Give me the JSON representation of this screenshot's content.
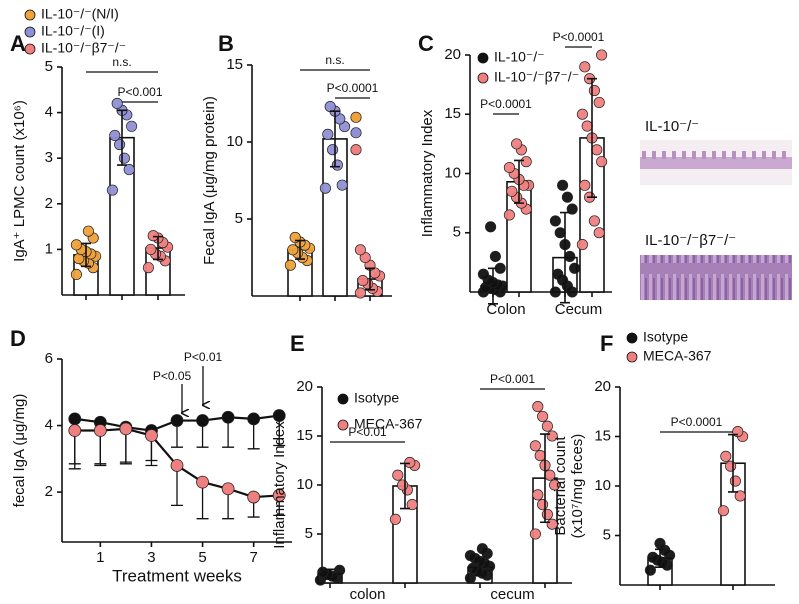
{
  "chart_data": [
    {
      "type": "bar",
      "panel_label": "A",
      "ylabel": "IgA⁺ LPMC count (x10⁶)",
      "ylim": [
        0,
        5
      ],
      "yticks": [
        1,
        2,
        3,
        4,
        5
      ],
      "series": [
        {
          "name": "IL-10⁻/⁻(N/I)",
          "color": "#f0a13a",
          "values": [
            0.88
          ],
          "errors": [
            0.25
          ],
          "points": [
            [
              0.45,
              0.6,
              0.7,
              0.75,
              0.8,
              0.85,
              0.9,
              0.95,
              1.0,
              1.1,
              1.25,
              1.4
            ]
          ]
        },
        {
          "name": "IL-10⁻/⁻(I)",
          "color": "#8f8fd6",
          "values": [
            3.45
          ],
          "errors": [
            0.6
          ],
          "points": [
            [
              2.3,
              2.75,
              3.0,
              3.3,
              3.5,
              3.7,
              3.95,
              4.05,
              4.2
            ]
          ]
        },
        {
          "name": "IL-10⁻/⁻β7⁻/⁻",
          "color": "#f08080",
          "values": [
            1.03
          ],
          "errors": [
            0.25
          ],
          "points": [
            [
              0.6,
              0.75,
              0.85,
              0.9,
              1.0,
              1.05,
              1.15,
              1.25,
              1.3
            ]
          ]
        }
      ],
      "annotations": [
        "n.s.",
        "P<0.001"
      ]
    },
    {
      "type": "bar",
      "panel_label": "B",
      "ylabel": "Fecal IgA (μg/mg protein)",
      "ylim": [
        0,
        15
      ],
      "yticks": [
        5,
        10,
        15
      ],
      "series": [
        {
          "color": "#f0a13a",
          "values": [
            3.0
          ],
          "errors": [
            0.6
          ],
          "points": [
            [
              2.0,
              2.3,
              2.5,
              2.8,
              3.0,
              3.1,
              3.3,
              3.5,
              3.8
            ]
          ]
        },
        {
          "color": "#8f8fd6",
          "values": [
            10.2
          ],
          "errors": [
            1.8
          ],
          "points": [
            [
              7.0,
              7.2,
              8.5,
              9.5,
              10.5,
              11.0,
              11.5,
              12.0,
              12.3
            ]
          ]
        },
        {
          "color": "#f08080",
          "values": [
            1.1
          ],
          "errors": [
            0.7
          ],
          "points": [
            [
              0.2,
              0.3,
              0.5,
              0.8,
              1.0,
              1.3,
              1.5,
              2.0,
              2.5,
              3.0
            ]
          ]
        }
      ],
      "extra_points": [
        {
          "color": "#f0a13a",
          "value": 11.6
        },
        {
          "color": "#8f8fd6",
          "value": 10.6
        },
        {
          "color": "#f08080",
          "value": 9.5
        }
      ],
      "annotations": [
        "n.s.",
        "P<0.0001"
      ]
    },
    {
      "type": "bar",
      "panel_label": "C",
      "ylabel": "Inflammatory Index",
      "ylim": [
        0,
        20
      ],
      "yticks": [
        5,
        10,
        15,
        20
      ],
      "categories": [
        "Colon",
        "Cecum"
      ],
      "series": [
        {
          "name": "IL-10⁻/⁻",
          "color": "#111111",
          "values": [
            0.5,
            2.9
          ],
          "errors": [
            1.5,
            3.8
          ],
          "points": [
            [
              0,
              0,
              0.2,
              0.3,
              0.4,
              0.5,
              0.6,
              0.8,
              1.0,
              1.5,
              2.0,
              3.0,
              5.5
            ],
            [
              0,
              0,
              0.5,
              1.0,
              1.5,
              2.0,
              3.0,
              4.0,
              5.0,
              6.0,
              7.0,
              8.0,
              9.0
            ]
          ]
        },
        {
          "name": "IL-10⁻/⁻β7⁻/⁻",
          "color": "#f08080",
          "values": [
            9.3,
            13.0
          ],
          "errors": [
            1.8,
            5.0
          ],
          "points": [
            [
              6.5,
              7.0,
              7.5,
              8.0,
              8.5,
              9.0,
              9.0,
              9.5,
              10.0,
              10.5,
              11.0,
              12.0,
              12.5
            ],
            [
              4,
              5,
              6,
              8,
              9,
              11,
              12,
              13,
              14,
              15,
              16,
              17,
              18,
              19,
              20
            ]
          ]
        }
      ],
      "annotations": [
        "P<0.0001",
        "P<0.0001"
      ]
    },
    {
      "type": "line",
      "panel_label": "D",
      "ylabel": "fecal IgA (μg/mg)",
      "xlabel": "Treatment weeks",
      "x": [
        0,
        1,
        2,
        3,
        4,
        5,
        6,
        7,
        8
      ],
      "xlim": [
        -0.5,
        8.5
      ],
      "xticks": [
        1,
        3,
        5,
        7
      ],
      "ylim": [
        0.5,
        6
      ],
      "yticks": [
        2,
        4,
        6
      ],
      "series": [
        {
          "color": "#111111",
          "values": [
            4.2,
            4.1,
            3.95,
            3.85,
            4.15,
            4.15,
            4.25,
            4.2,
            4.3
          ],
          "errors": [
            1.5,
            1.3,
            1.1,
            0.9,
            0.8,
            0.8,
            0.9,
            0.9,
            0.9
          ]
        },
        {
          "color": "#f08080",
          "values": [
            3.85,
            3.85,
            3.9,
            3.7,
            2.8,
            2.3,
            2.1,
            1.85,
            1.9
          ],
          "errors": [
            1.0,
            1.0,
            1.0,
            0.9,
            1.2,
            1.1,
            0.9,
            0.6,
            0.6
          ]
        }
      ],
      "annotations": [
        "P<0.05",
        "P<0.01"
      ]
    },
    {
      "type": "bar",
      "panel_label": "E",
      "ylabel": "Inflammatory Index",
      "ylim": [
        0,
        20
      ],
      "yticks": [
        5,
        10,
        15,
        20
      ],
      "categories": [
        "colon",
        "cecum"
      ],
      "series": [
        {
          "name": "Isotype",
          "color": "#111111",
          "values": [
            0.9,
            1.6
          ],
          "errors": [
            0.5,
            0.8
          ],
          "points": [
            [
              0.3,
              0.5,
              0.7,
              0.9,
              1.1,
              1.3
            ],
            [
              0.5,
              0.8,
              1.0,
              1.2,
              1.5,
              1.7,
              2.0,
              2.2,
              2.5,
              2.8,
              3.0,
              3.5
            ]
          ]
        },
        {
          "name": "MECA-367",
          "color": "#f08080",
          "values": [
            9.9,
            10.7
          ],
          "errors": [
            2.3,
            4.5
          ],
          "points": [
            [
              6.5,
              8.0,
              9.5,
              10.0,
              11.0,
              12.0,
              12.3
            ],
            [
              5,
              6,
              7,
              8,
              9,
              10,
              11,
              12,
              13,
              14,
              15,
              16,
              17,
              18
            ]
          ]
        }
      ],
      "annotations": [
        "P<0.01",
        "P<0.001"
      ]
    },
    {
      "type": "bar",
      "panel_label": "F",
      "ylabel": [
        "Bacterial count",
        "(x10⁷/mg feces)"
      ],
      "ylim": [
        0,
        20
      ],
      "yticks": [
        5,
        10,
        15,
        20
      ],
      "series": [
        {
          "name": "Isotype",
          "color": "#111111",
          "values": [
            2.7
          ],
          "errors": [
            0.9
          ],
          "points": [
            [
              1.5,
              2.0,
              2.3,
              2.5,
              2.8,
              3.0,
              3.5,
              4.2
            ]
          ]
        },
        {
          "name": "MECA-367",
          "color": "#f08080",
          "values": [
            12.3
          ],
          "errors": [
            2.9
          ],
          "points": [
            [
              7.5,
              9.0,
              10.5,
              12.0,
              13.0,
              15.0,
              15.5
            ]
          ]
        }
      ],
      "annotations": [
        "P<0.0001"
      ]
    }
  ],
  "images": [
    {
      "label": "IL-10⁻/⁻"
    },
    {
      "label": "IL-10⁻/⁻β7⁻/⁻"
    }
  ]
}
